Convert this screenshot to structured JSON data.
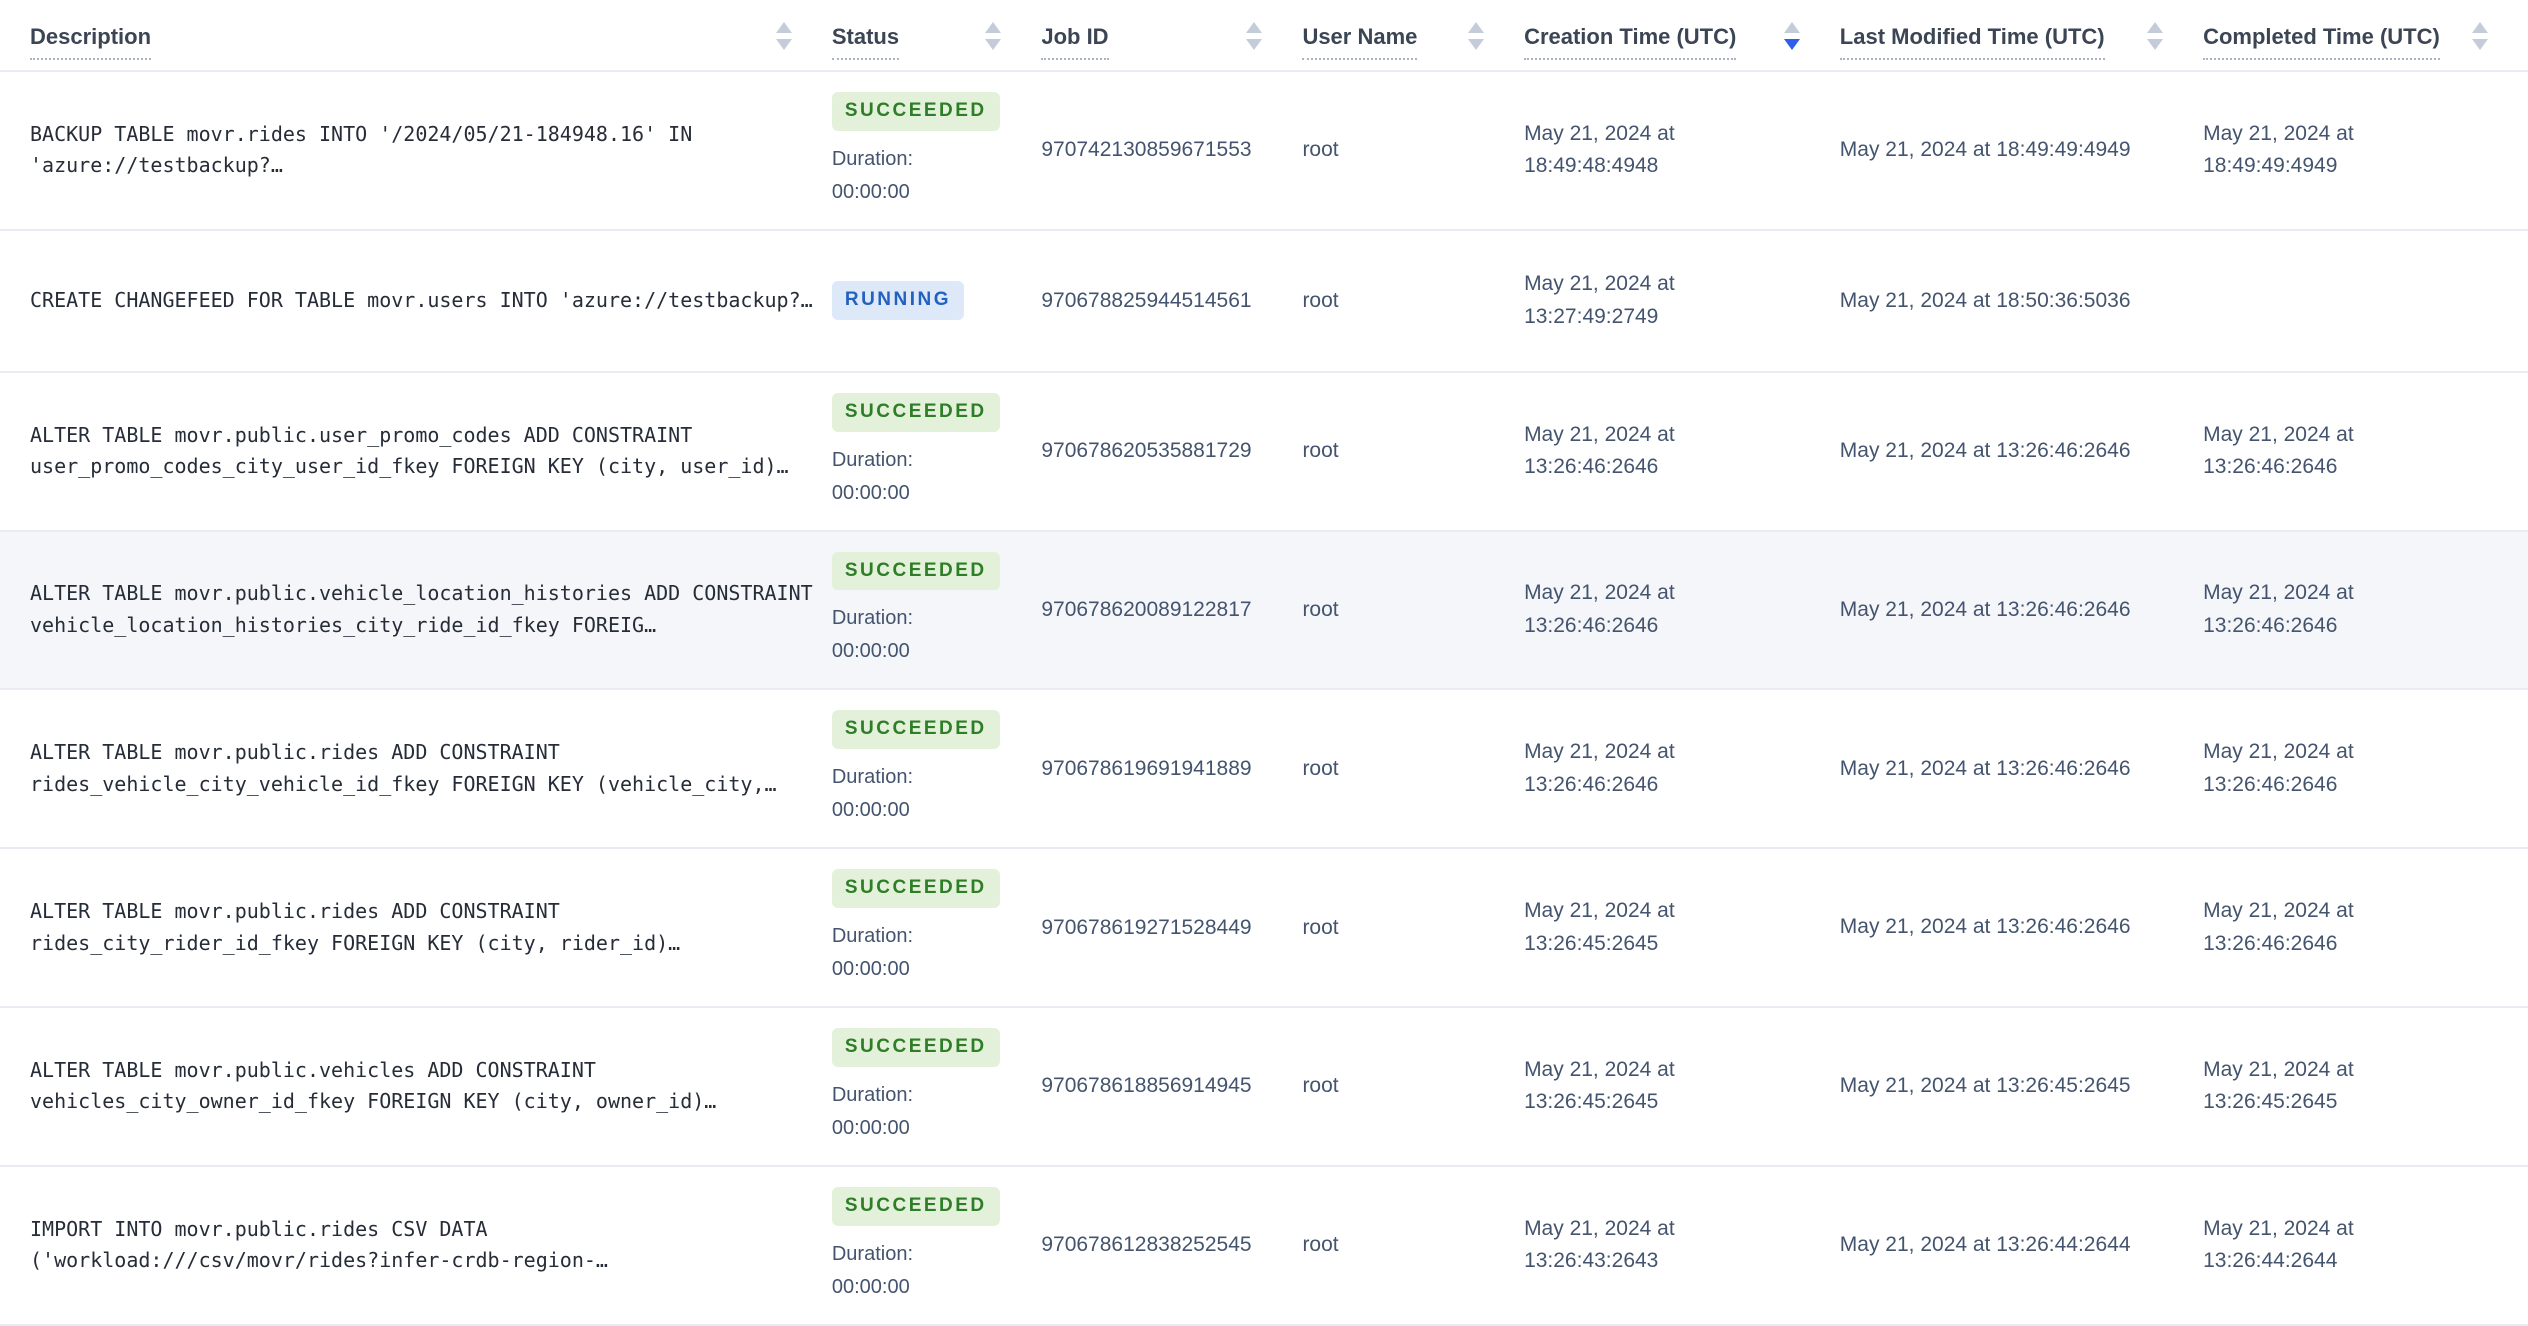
{
  "table": {
    "columns": [
      {
        "key": "description",
        "label": "Description",
        "sortable": true,
        "sort": "none"
      },
      {
        "key": "status",
        "label": "Status",
        "sortable": true,
        "sort": "none"
      },
      {
        "key": "job_id",
        "label": "Job ID",
        "sortable": true,
        "sort": "none"
      },
      {
        "key": "user_name",
        "label": "User Name",
        "sortable": true,
        "sort": "none"
      },
      {
        "key": "creation_time",
        "label": "Creation Time (UTC)",
        "sortable": true,
        "sort": "desc"
      },
      {
        "key": "last_modified_time",
        "label": "Last Modified Time (UTC)",
        "sortable": true,
        "sort": "none"
      },
      {
        "key": "completed_time",
        "label": "Completed Time (UTC)",
        "sortable": true,
        "sort": "none"
      }
    ],
    "duration_label": "Duration:",
    "rows": [
      {
        "description": "BACKUP TABLE movr.rides INTO '/2024/05/21-184948.16' IN 'azure://testbackup?…",
        "status": "SUCCEEDED",
        "status_kind": "succeeded",
        "duration": "00:00:00",
        "job_id": "970742130859671553",
        "user_name": "root",
        "creation_time": "May 21, 2024 at 18:49:48:4948",
        "last_modified_time": "May 21, 2024 at 18:49:49:4949",
        "completed_time": "May 21, 2024 at 18:49:49:4949",
        "highlighted": false
      },
      {
        "description": "CREATE CHANGEFEED FOR TABLE movr.users INTO 'azure://testbackup?…",
        "status": "RUNNING",
        "status_kind": "running",
        "duration": null,
        "job_id": "970678825944514561",
        "user_name": "root",
        "creation_time": "May 21, 2024 at 13:27:49:2749",
        "last_modified_time": "May 21, 2024 at 18:50:36:5036",
        "completed_time": "",
        "highlighted": false
      },
      {
        "description": "ALTER TABLE movr.public.user_promo_codes ADD CONSTRAINT user_promo_codes_city_user_id_fkey FOREIGN KEY (city, user_id)…",
        "status": "SUCCEEDED",
        "status_kind": "succeeded",
        "duration": "00:00:00",
        "job_id": "970678620535881729",
        "user_name": "root",
        "creation_time": "May 21, 2024 at 13:26:46:2646",
        "last_modified_time": "May 21, 2024 at 13:26:46:2646",
        "completed_time": "May 21, 2024 at 13:26:46:2646",
        "highlighted": false
      },
      {
        "description": "ALTER TABLE movr.public.vehicle_location_histories ADD CONSTRAINT vehicle_location_histories_city_ride_id_fkey FOREIG…",
        "status": "SUCCEEDED",
        "status_kind": "succeeded",
        "duration": "00:00:00",
        "job_id": "970678620089122817",
        "user_name": "root",
        "creation_time": "May 21, 2024 at 13:26:46:2646",
        "last_modified_time": "May 21, 2024 at 13:26:46:2646",
        "completed_time": "May 21, 2024 at 13:26:46:2646",
        "highlighted": true
      },
      {
        "description": "ALTER TABLE movr.public.rides ADD CONSTRAINT rides_vehicle_city_vehicle_id_fkey FOREIGN KEY (vehicle_city,…",
        "status": "SUCCEEDED",
        "status_kind": "succeeded",
        "duration": "00:00:00",
        "job_id": "970678619691941889",
        "user_name": "root",
        "creation_time": "May 21, 2024 at 13:26:46:2646",
        "last_modified_time": "May 21, 2024 at 13:26:46:2646",
        "completed_time": "May 21, 2024 at 13:26:46:2646",
        "highlighted": false
      },
      {
        "description": "ALTER TABLE movr.public.rides ADD CONSTRAINT rides_city_rider_id_fkey FOREIGN KEY (city, rider_id)…",
        "status": "SUCCEEDED",
        "status_kind": "succeeded",
        "duration": "00:00:00",
        "job_id": "970678619271528449",
        "user_name": "root",
        "creation_time": "May 21, 2024 at 13:26:45:2645",
        "last_modified_time": "May 21, 2024 at 13:26:46:2646",
        "completed_time": "May 21, 2024 at 13:26:46:2646",
        "highlighted": false
      },
      {
        "description": "ALTER TABLE movr.public.vehicles ADD CONSTRAINT vehicles_city_owner_id_fkey FOREIGN KEY (city, owner_id)…",
        "status": "SUCCEEDED",
        "status_kind": "succeeded",
        "duration": "00:00:00",
        "job_id": "970678618856914945",
        "user_name": "root",
        "creation_time": "May 21, 2024 at 13:26:45:2645",
        "last_modified_time": "May 21, 2024 at 13:26:45:2645",
        "completed_time": "May 21, 2024 at 13:26:45:2645",
        "highlighted": false
      },
      {
        "description": "IMPORT INTO movr.public.rides CSV DATA ('workload:///csv/movr/rides?infer-crdb-region-…",
        "status": "SUCCEEDED",
        "status_kind": "succeeded",
        "duration": "00:00:00",
        "job_id": "970678612838252545",
        "user_name": "root",
        "creation_time": "May 21, 2024 at 13:26:43:2643",
        "last_modified_time": "May 21, 2024 at 13:26:44:2644",
        "completed_time": "May 21, 2024 at 13:26:44:2644",
        "highlighted": false
      }
    ]
  },
  "colors": {
    "succeeded_text": "#2e7d27",
    "succeeded_bg": "#e4f1da",
    "running_text": "#2361c0",
    "running_bg": "#dde8f9",
    "sort_active": "#2d5fec",
    "sort_inactive": "#c4cbd9",
    "header_text": "#3b4554",
    "body_text": "#44546e",
    "description_text": "#262d38",
    "row_divider": "#e8ecf2",
    "highlight_row_bg": "#f4f6f9"
  }
}
